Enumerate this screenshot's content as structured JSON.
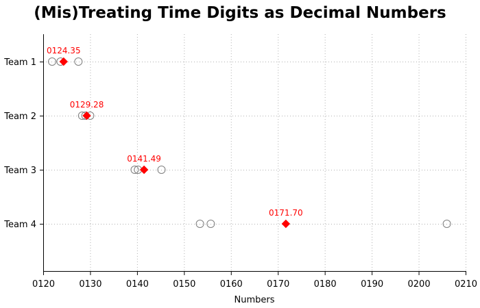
{
  "chart_data": {
    "type": "scatter",
    "title": "(Mis)Treating Time Digits as Decimal Numbers",
    "xlabel": "Numbers",
    "ylabel": "",
    "xlim": [
      120,
      210
    ],
    "xticks": [
      120,
      130,
      140,
      150,
      160,
      170,
      180,
      190,
      200,
      210
    ],
    "xtick_labels": [
      "0120",
      "0130",
      "0140",
      "0150",
      "0160",
      "0170",
      "0180",
      "0190",
      "0200",
      "0210"
    ],
    "categories": [
      "Team 1",
      "Team 2",
      "Team 3",
      "Team 4"
    ],
    "grid": true,
    "series": [
      {
        "marker": "circle-open",
        "color": "#7f7f7f",
        "points": [
          {
            "category": "Team 1",
            "values": [
              121.9,
              123.7,
              127.5
            ]
          },
          {
            "category": "Team 2",
            "values": [
              128.3,
              129.0,
              130.0
            ]
          },
          {
            "category": "Team 3",
            "values": [
              139.5,
              140.2,
              145.2
            ]
          },
          {
            "category": "Team 4",
            "values": [
              153.4,
              155.7,
              206.0
            ]
          }
        ]
      },
      {
        "marker": "diamond-filled",
        "color": "#ff0000",
        "points": [
          {
            "category": "Team 1",
            "value": 124.35,
            "label": "0124.35"
          },
          {
            "category": "Team 2",
            "value": 129.28,
            "label": "0129.28"
          },
          {
            "category": "Team 3",
            "value": 141.49,
            "label": "0141.49"
          },
          {
            "category": "Team 4",
            "value": 171.7,
            "label": "0171.70"
          }
        ]
      }
    ]
  }
}
